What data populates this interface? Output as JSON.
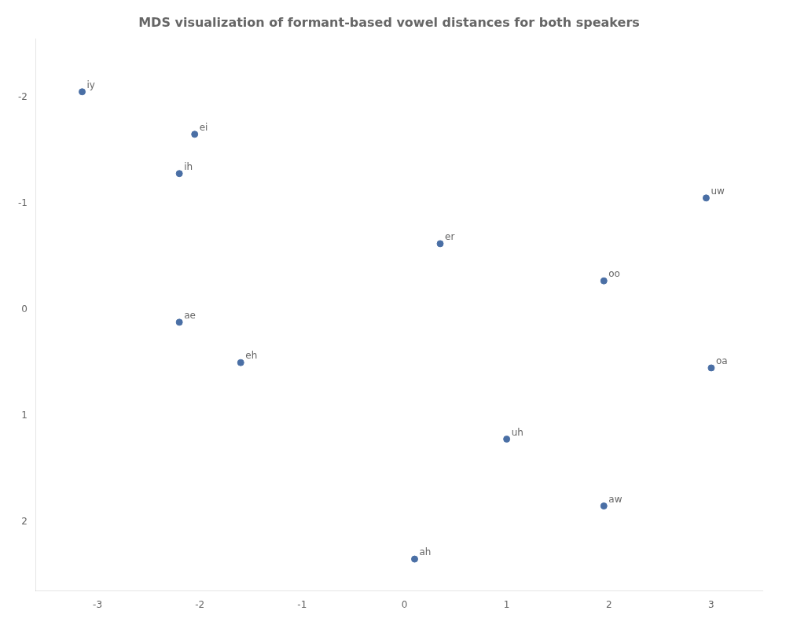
{
  "chart_data": {
    "type": "scatter",
    "title": "MDS visualization of formant-based vowel distances for both speakers",
    "x": [
      -3.15,
      -2.05,
      -2.2,
      2.95,
      0.35,
      1.95,
      -2.2,
      -1.6,
      3.0,
      1.0,
      1.95,
      0.1
    ],
    "values": [
      -2.05,
      -1.65,
      -1.28,
      -1.05,
      -0.62,
      -0.27,
      0.12,
      0.5,
      0.55,
      1.22,
      1.85,
      2.35
    ],
    "labels": [
      "iy",
      "ei",
      "ih",
      "uw",
      "er",
      "oo",
      "ae",
      "eh",
      "oa",
      "uh",
      "aw",
      "ah"
    ],
    "color": "#4a6fa5",
    "xlim": [
      -3.6,
      3.5
    ],
    "ylim": [
      2.65,
      -2.55
    ],
    "xticks": [
      -3,
      -2,
      -1,
      0,
      1,
      2,
      3
    ],
    "yticks": [
      -2,
      -1,
      0,
      1,
      2
    ],
    "grid": false
  }
}
